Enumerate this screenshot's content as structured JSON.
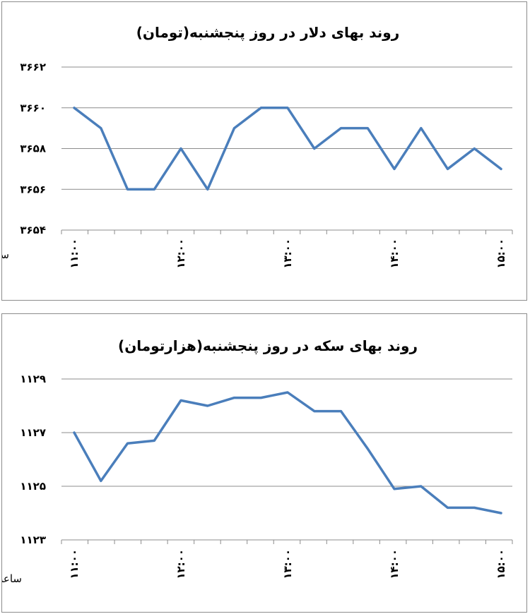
{
  "colors": {
    "series": "#4a7ebb",
    "grid": "#8c8c8c"
  },
  "chart_data": [
    {
      "type": "line",
      "title": "روند بهای دلار در روز پنجشنبه(تومان)",
      "xlabel": "ساعت",
      "ylabel": "",
      "ylim": [
        3654,
        3662
      ],
      "yticks": [
        3654,
        3656,
        3658,
        3660,
        3662
      ],
      "ytick_labels": [
        "۳۶۵۴",
        "۳۶۵۶",
        "۳۶۵۸",
        "۳۶۶۰",
        "۳۶۶۲"
      ],
      "xtick_labels": [
        "۱۱:۰۰",
        "۱۲:۰۰",
        "۱۳:۰۰",
        "۱۴:۰۰",
        "۱۵:۰۰"
      ],
      "xtick_index": [
        0,
        4,
        8,
        12,
        16
      ],
      "grid": true,
      "legend": "none",
      "series": [
        {
          "values": [
            3660,
            3659,
            3656,
            3656,
            3658,
            3656,
            3659,
            3660,
            3660,
            3658,
            3659,
            3659,
            3657,
            3659,
            3657,
            3658,
            3657
          ]
        }
      ]
    },
    {
      "type": "line",
      "title": "روند بهای سکه در روز پنجشنبه(هزارتومان)",
      "xlabel": "ساعت",
      "ylabel": "",
      "ylim": [
        1123,
        1129
      ],
      "yticks": [
        1123,
        1125,
        1127,
        1129
      ],
      "ytick_labels": [
        "۱۱۲۳",
        "۱۱۲۵",
        "۱۱۲۷",
        "۱۱۲۹"
      ],
      "xtick_labels": [
        "۱۱:۰۰",
        "۱۲:۰۰",
        "۱۳:۰۰",
        "۱۴:۰۰",
        "۱۵:۰۰"
      ],
      "xtick_index": [
        0,
        4,
        8,
        12,
        16
      ],
      "grid": true,
      "legend": "none",
      "series": [
        {
          "values": [
            1127,
            1125.2,
            1126.6,
            1126.7,
            1128.2,
            1128,
            1128.3,
            1128.3,
            1128.5,
            1127.8,
            1127.8,
            1126.4,
            1124.9,
            1125,
            1124.2,
            1124.2,
            1124
          ]
        }
      ]
    }
  ]
}
